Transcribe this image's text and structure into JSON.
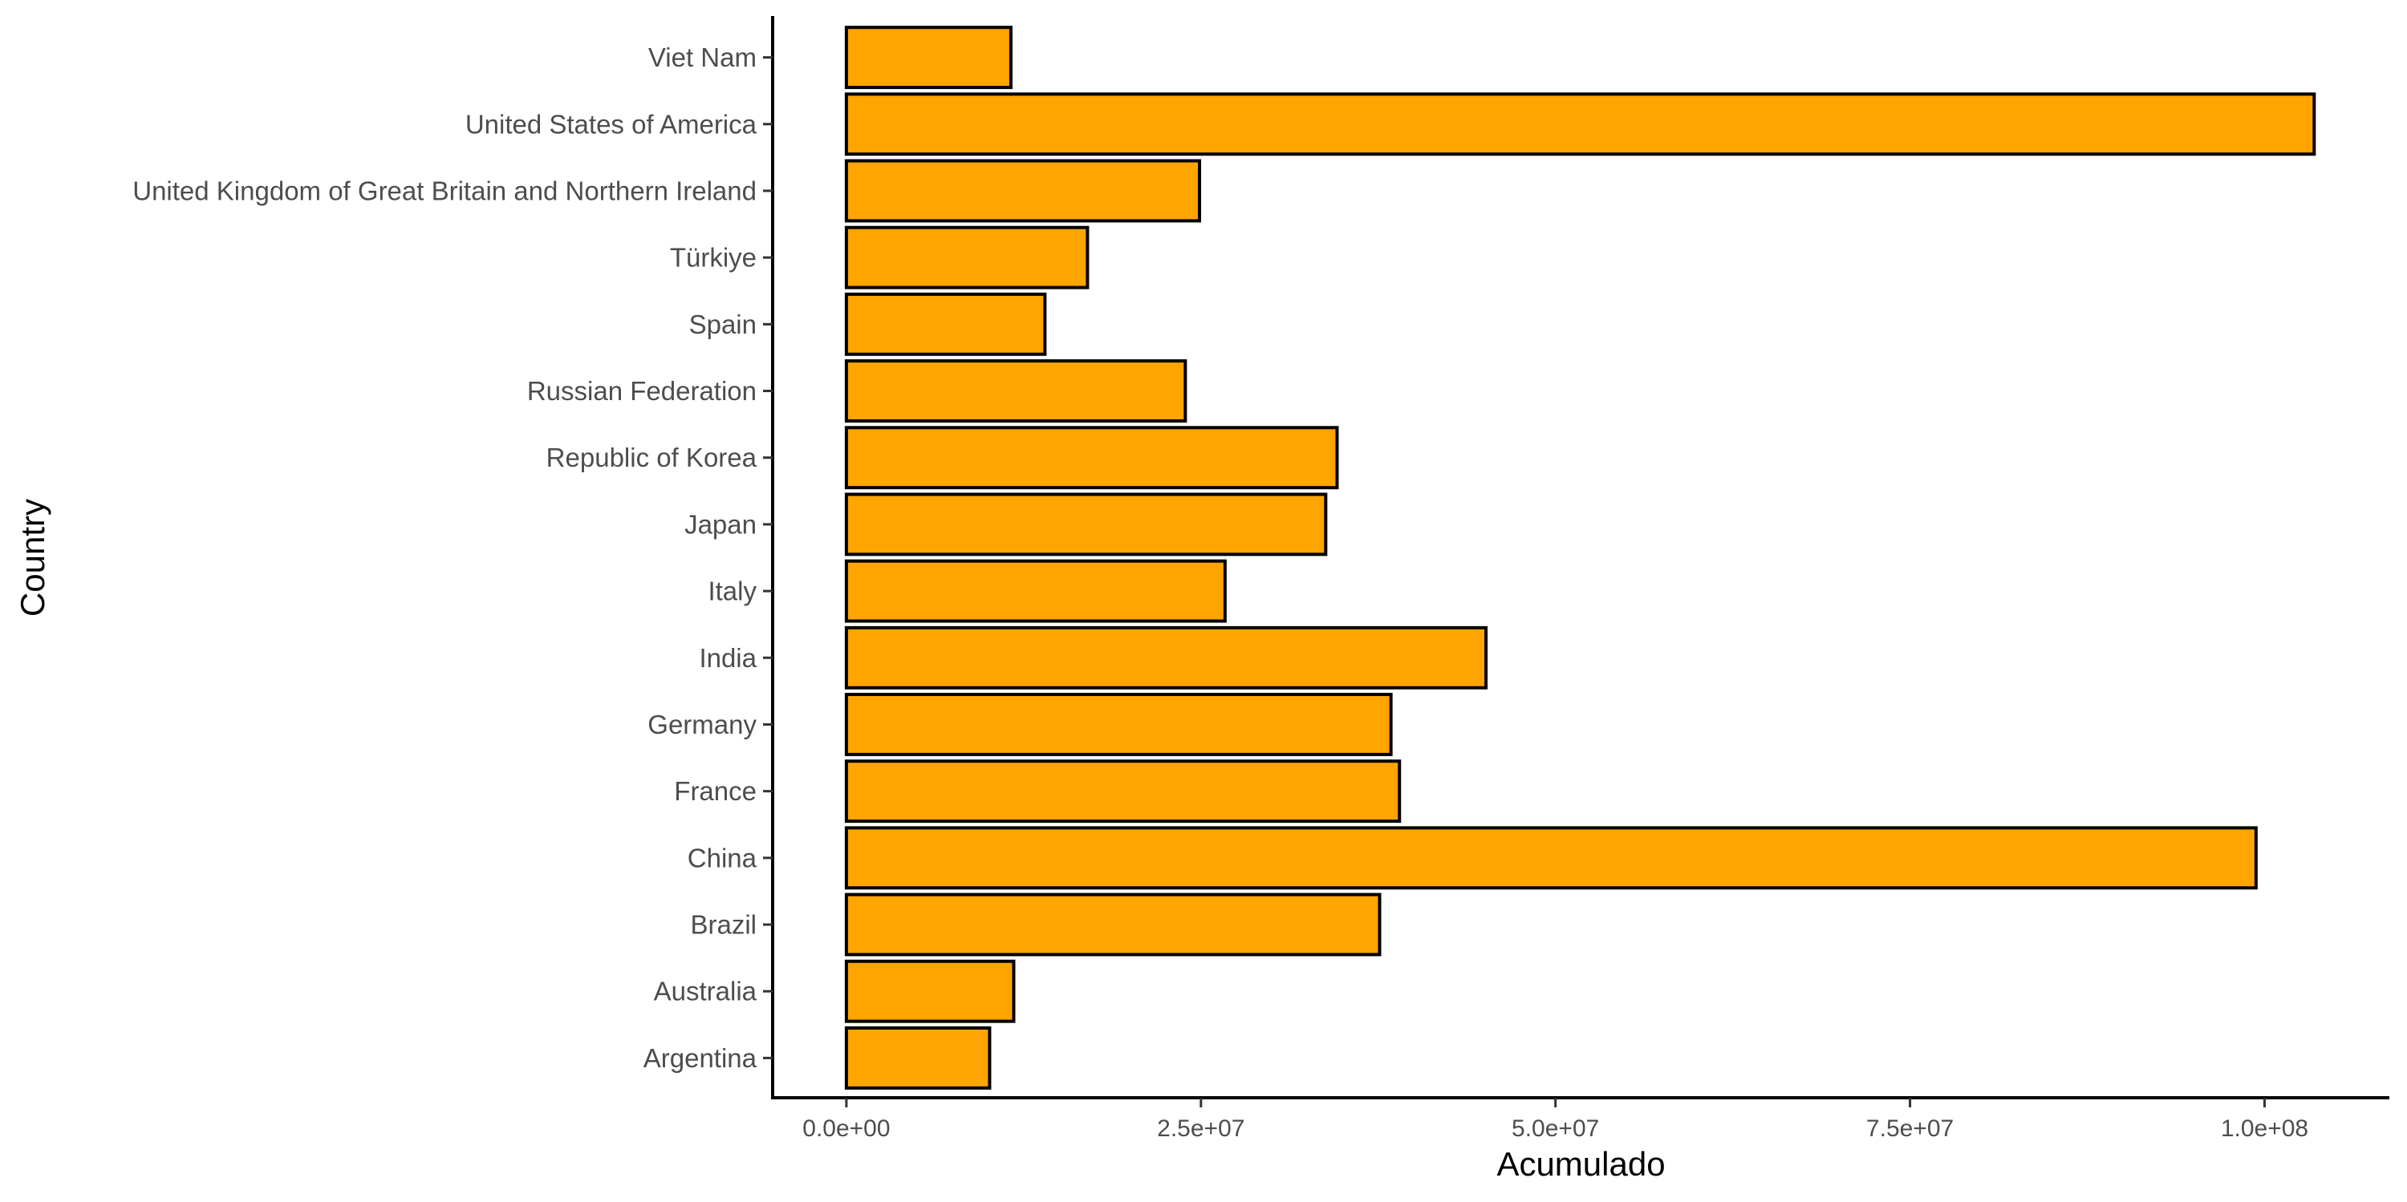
{
  "chart_data": {
    "type": "bar",
    "orientation": "horizontal",
    "categories": [
      "Argentina",
      "Australia",
      "Brazil",
      "China",
      "France",
      "Germany",
      "India",
      "Italy",
      "Japan",
      "Republic of Korea",
      "Russian Federation",
      "Spain",
      "Türkiye",
      "United Kingdom of Great Britain and Northern Ireland",
      "United States of America",
      "Viet Nam"
    ],
    "values": [
      10100000,
      11800000,
      37600000,
      99400000,
      39000000,
      38400000,
      45100000,
      26700000,
      33800000,
      34600000,
      23900000,
      14000000,
      17000000,
      24900000,
      103500000,
      11600000
    ],
    "xlabel": "Acumulado",
    "ylabel": "Country",
    "xlim": [
      -5200000,
      108800000
    ],
    "x_ticks": [
      0,
      25000000,
      50000000,
      75000000,
      100000000
    ],
    "x_tick_labels": [
      "0.0e+00",
      "2.5e+07",
      "5.0e+07",
      "7.5e+07",
      "1.0e+08"
    ],
    "grid": false,
    "legend": "none",
    "bar_color": "#FFA500",
    "bar_border_color": "#000000"
  }
}
